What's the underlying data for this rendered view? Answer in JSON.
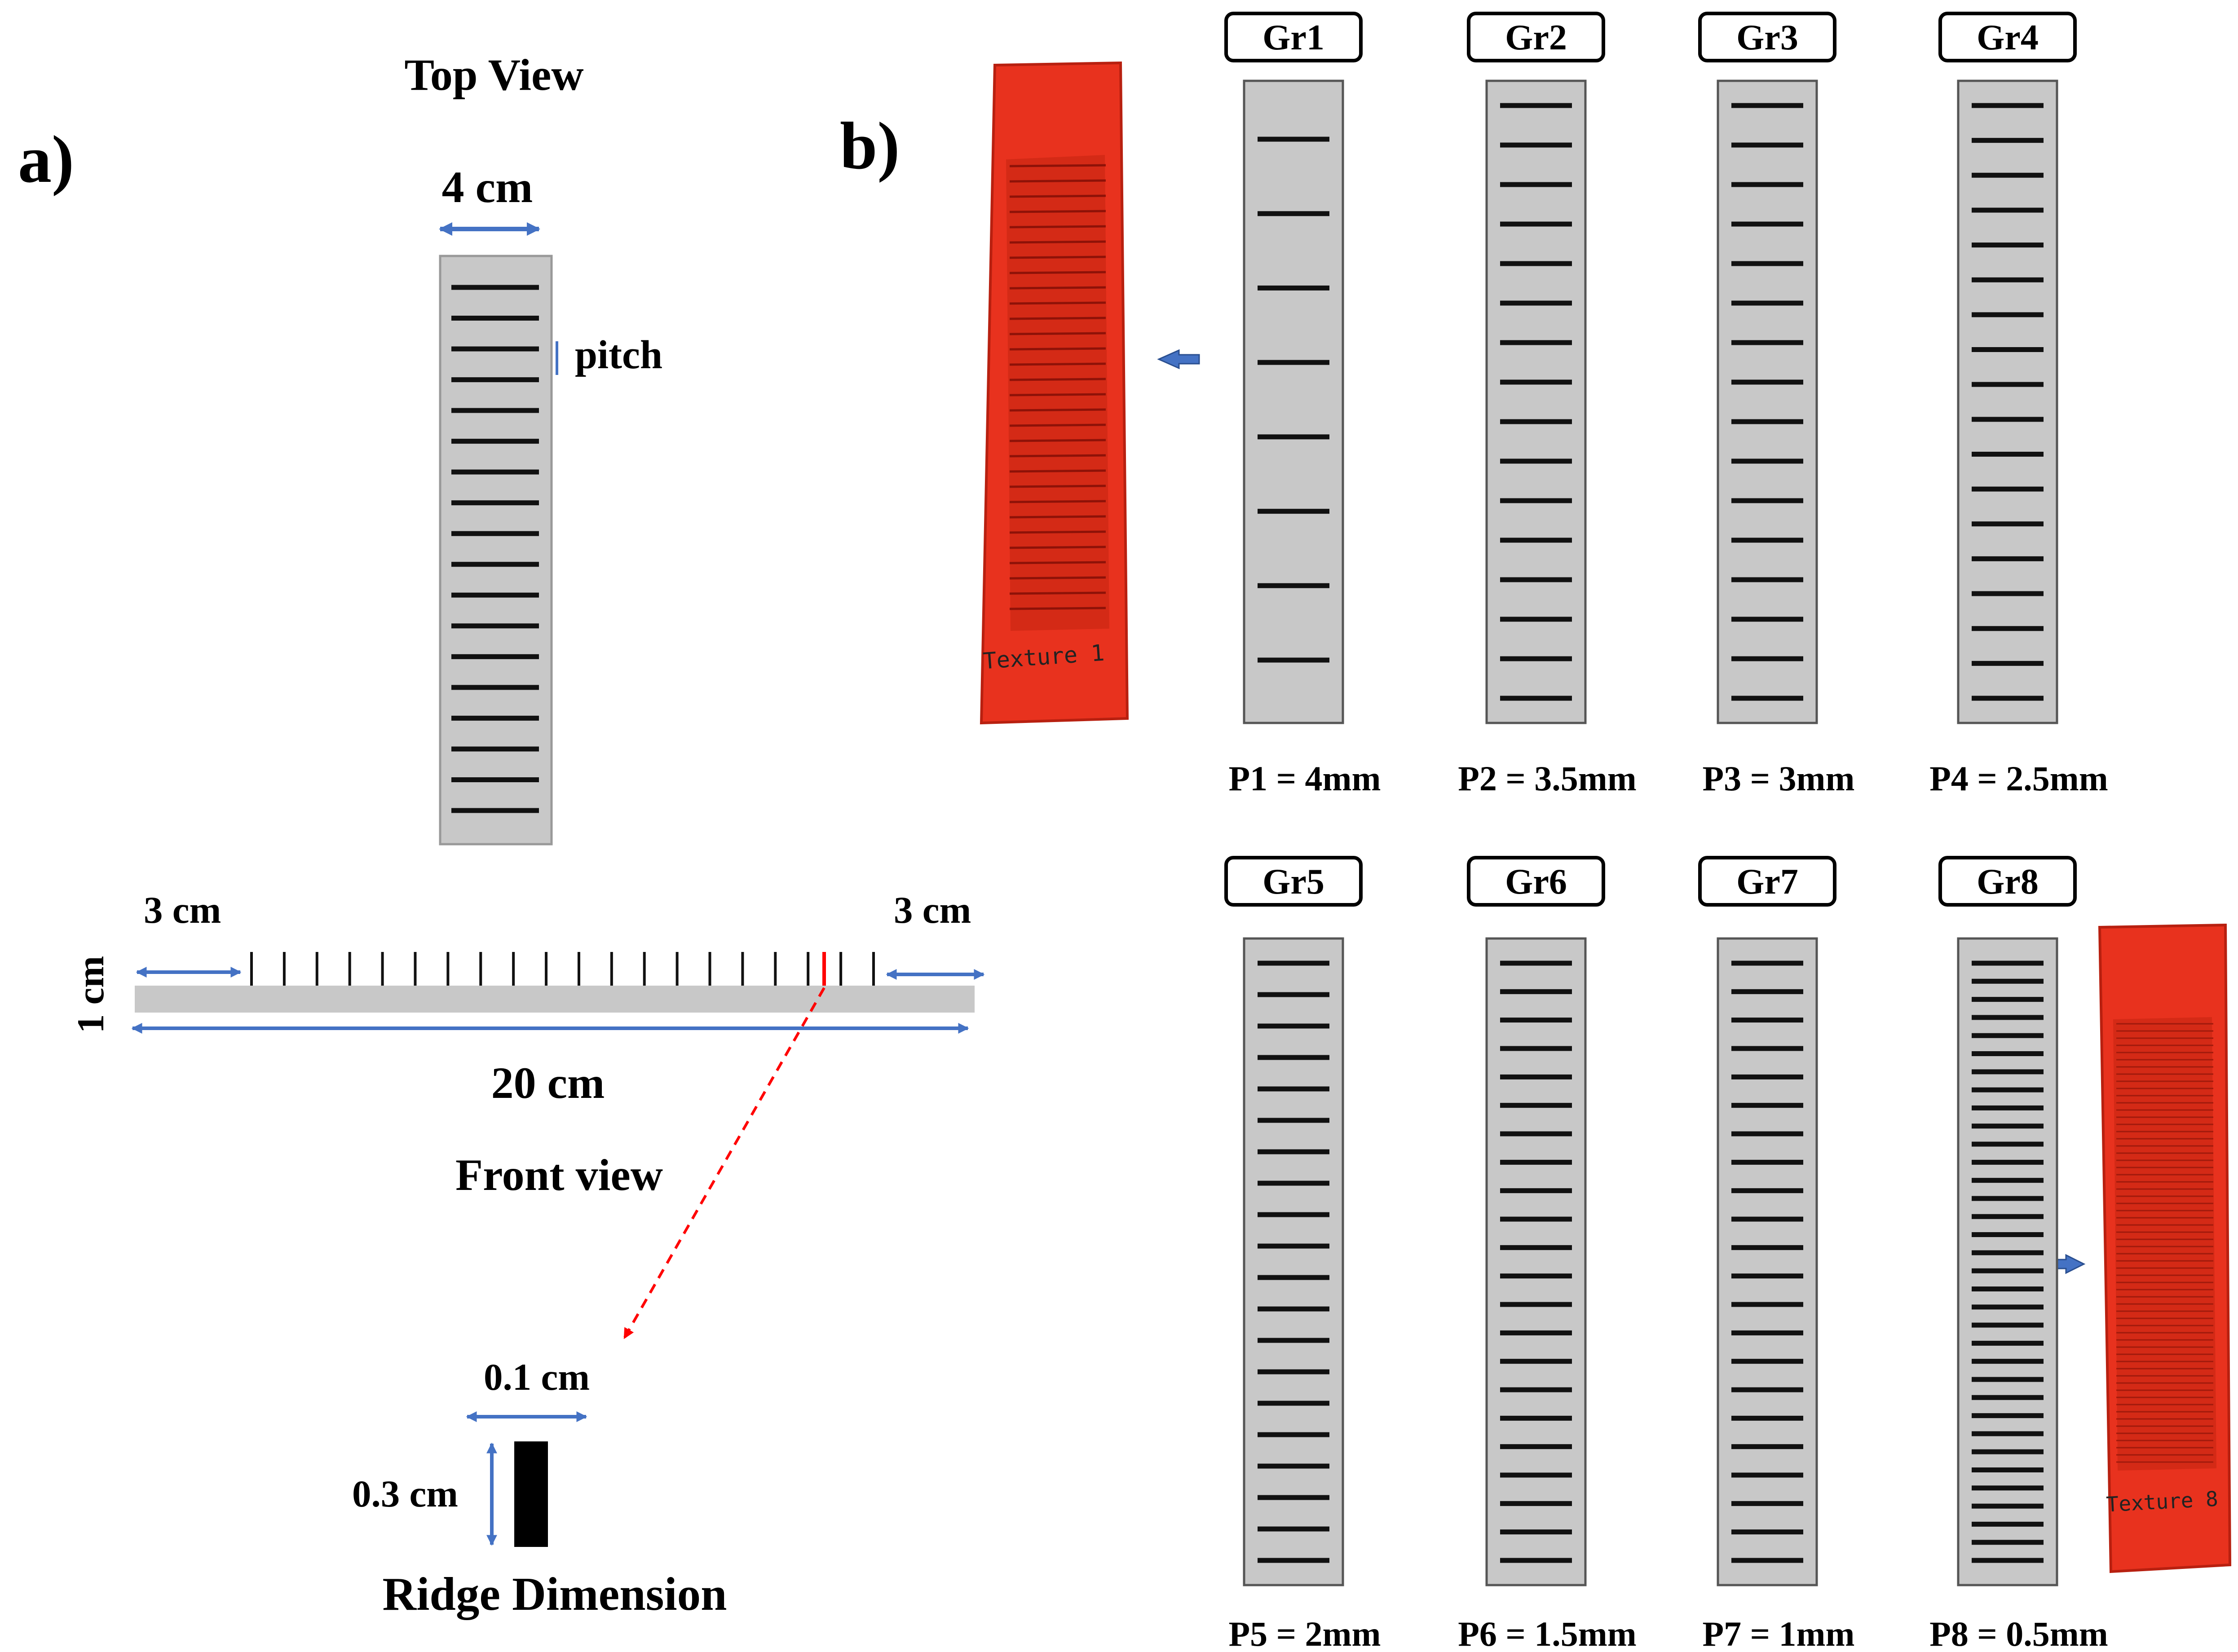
{
  "panel_a": {
    "label": "a)",
    "top_view": {
      "title": "Top View",
      "width_label": "4 cm",
      "pitch_label": "pitch",
      "ridge_count": 18
    },
    "front_view": {
      "title": "Front view",
      "left_margin_label": "3 cm",
      "right_margin_label": "3 cm",
      "height_label": "1 cm",
      "length_label": "20 cm",
      "ridge_count": 20
    },
    "ridge": {
      "title": "Ridge Dimension",
      "width_label": "0.1 cm",
      "height_label": "0.3 cm"
    }
  },
  "panel_b": {
    "label": "b)",
    "photo_top_caption": "Texture 1",
    "photo_bottom_caption": "Texture 8",
    "gratings": [
      {
        "group": "Gr1",
        "pitch_label": "P1 = 4mm",
        "ridges": 8
      },
      {
        "group": "Gr2",
        "pitch_label": "P2 = 3.5mm",
        "ridges": 16
      },
      {
        "group": "Gr3",
        "pitch_label": "P3 = 3mm",
        "ridges": 16
      },
      {
        "group": "Gr4",
        "pitch_label": "P4 = 2.5mm",
        "ridges": 18
      },
      {
        "group": "Gr5",
        "pitch_label": "P5 = 2mm",
        "ridges": 20
      },
      {
        "group": "Gr6",
        "pitch_label": "P6 = 1.5mm",
        "ridges": 22
      },
      {
        "group": "Gr7",
        "pitch_label": "P7 = 1mm",
        "ridges": 22
      },
      {
        "group": "Gr8",
        "pitch_label": "P8 = 0.5mm",
        "ridges": 34
      }
    ]
  },
  "colors": {
    "strip": "#c8c8c8",
    "ridge": "#111111",
    "arrow": "#4472c4",
    "highlight": "#ff0000",
    "texture": "#e8321e"
  }
}
